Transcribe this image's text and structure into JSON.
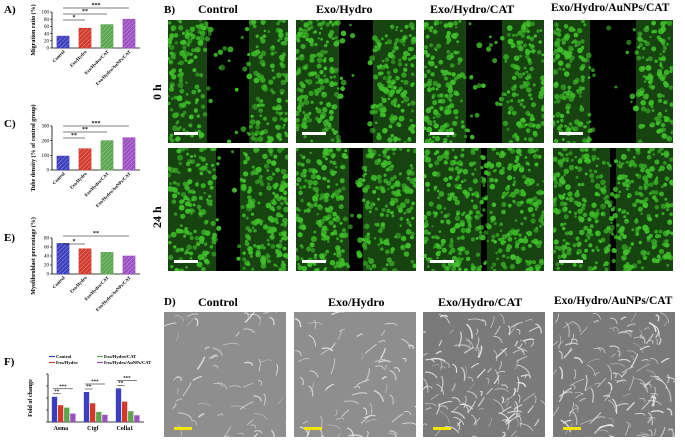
{
  "panels": {
    "A": {
      "letter": "A)",
      "ylabel": "Migration ratio (%)"
    },
    "B": {
      "letter": "B)"
    },
    "C": {
      "letter": "C)",
      "ylabel": "Tube density\n(% of control group)"
    },
    "D": {
      "letter": "D)"
    },
    "E": {
      "letter": "E)",
      "ylabel": "Myofibroblast percentage (%)"
    },
    "F": {
      "letter": "F)",
      "ylabel": "Fold of change"
    }
  },
  "images_B": {
    "columns": [
      "Control",
      "Exo/Hydro",
      "Exo/Hydro/CAT",
      "Exo/Hydro/AuNPs/CAT"
    ],
    "rows": [
      "0 h",
      "24 h"
    ]
  },
  "images_D": {
    "columns": [
      "Control",
      "Exo/Hydro",
      "Exo/Hydro/CAT",
      "Exo/Hydro/AuNPs/CAT"
    ]
  },
  "colors": {
    "blue": "#3b3fbf",
    "red": "#d23a2c",
    "green": "#5aa54e",
    "purple": "#9b4fc2",
    "fluor": "#3fbf2a",
    "scale_yellow": "#f5e400"
  },
  "chart_data": [
    {
      "id": "A",
      "type": "bar",
      "categories": [
        "Control",
        "Exo/Hydro",
        "Exo/Hydro/CAT",
        "Exo/Hydro/AuNPs/CAT"
      ],
      "values": [
        33,
        55,
        65,
        80
      ],
      "ylabel": "Migration ratio (%)",
      "ylim": [
        0,
        100
      ],
      "yticks": [
        0,
        20,
        40,
        60,
        80,
        100
      ],
      "significance": [
        {
          "from": 0,
          "to": 1,
          "label": "*"
        },
        {
          "from": 0,
          "to": 2,
          "label": "**"
        },
        {
          "from": 0,
          "to": 3,
          "label": "***"
        }
      ]
    },
    {
      "id": "C",
      "type": "bar",
      "categories": [
        "Control",
        "Exo/Hydro",
        "Exo/Hydro/CAT",
        "Exo/Hydro/AuNPs/CAT"
      ],
      "values": [
        95,
        145,
        200,
        220
      ],
      "ylabel": "Tube density (% of control group)",
      "ylim": [
        0,
        300
      ],
      "yticks": [
        0,
        100,
        200,
        300
      ],
      "significance": [
        {
          "from": 0,
          "to": 1,
          "label": "**"
        },
        {
          "from": 0,
          "to": 2,
          "label": "**"
        },
        {
          "from": 0,
          "to": 3,
          "label": "***"
        }
      ]
    },
    {
      "id": "E",
      "type": "bar",
      "categories": [
        "Control",
        "Exo/Hydro",
        "Exo/Hydro/CAT",
        "Exo/Hydro/AuNPs/CAT"
      ],
      "values": [
        68,
        56,
        48,
        40
      ],
      "ylabel": "Myofibroblast percentage (%)",
      "ylim": [
        0,
        80
      ],
      "yticks": [
        0,
        20,
        40,
        60,
        80
      ],
      "significance": [
        {
          "from": 0,
          "to": 1,
          "label": "*"
        },
        {
          "from": 0,
          "to": 3,
          "label": "**"
        }
      ]
    },
    {
      "id": "F",
      "type": "bar",
      "categories": [
        "Asma",
        "Ctgf",
        "Colla1"
      ],
      "series": [
        {
          "name": "Control",
          "values": [
            1.05,
            1.25,
            1.4
          ]
        },
        {
          "name": "Exo/Hydro",
          "values": [
            0.7,
            0.78,
            0.85
          ]
        },
        {
          "name": "Exo/Hydro/CAT",
          "values": [
            0.6,
            0.42,
            0.45
          ]
        },
        {
          "name": "Exo/Hydro/AuNPs/CAT",
          "values": [
            0.35,
            0.3,
            0.28
          ]
        }
      ],
      "ylabel": "Fold of change",
      "ylim": [
        0,
        2
      ],
      "yticks": [
        0,
        0.5,
        1.0,
        1.5,
        2.0
      ],
      "significance": [
        {
          "group": 0,
          "labels": [
            "**",
            "***"
          ]
        },
        {
          "group": 1,
          "labels": [
            "**",
            "***"
          ]
        },
        {
          "group": 2,
          "labels": [
            "**",
            "***"
          ]
        }
      ]
    }
  ]
}
